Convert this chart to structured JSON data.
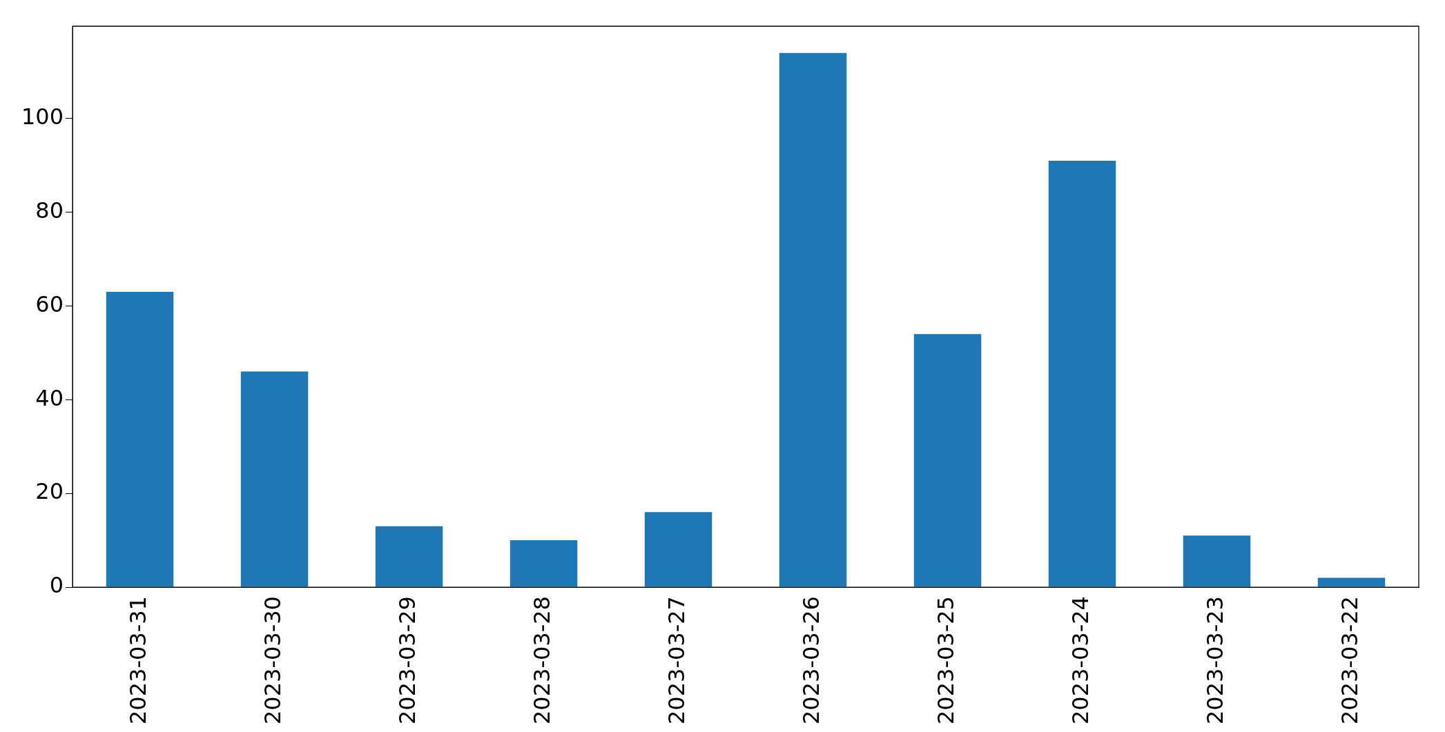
{
  "chart_data": {
    "type": "bar",
    "categories": [
      "2023-03-31",
      "2023-03-30",
      "2023-03-29",
      "2023-03-28",
      "2023-03-27",
      "2023-03-26",
      "2023-03-25",
      "2023-03-24",
      "2023-03-23",
      "2023-03-22"
    ],
    "values": [
      63,
      46,
      13,
      10,
      16,
      114,
      54,
      91,
      11,
      2
    ],
    "color": "#1f77b4",
    "ylim": [
      0,
      119.7
    ],
    "yticks": [
      0,
      20,
      40,
      60,
      80,
      100
    ],
    "grid": false,
    "legend": false
  }
}
